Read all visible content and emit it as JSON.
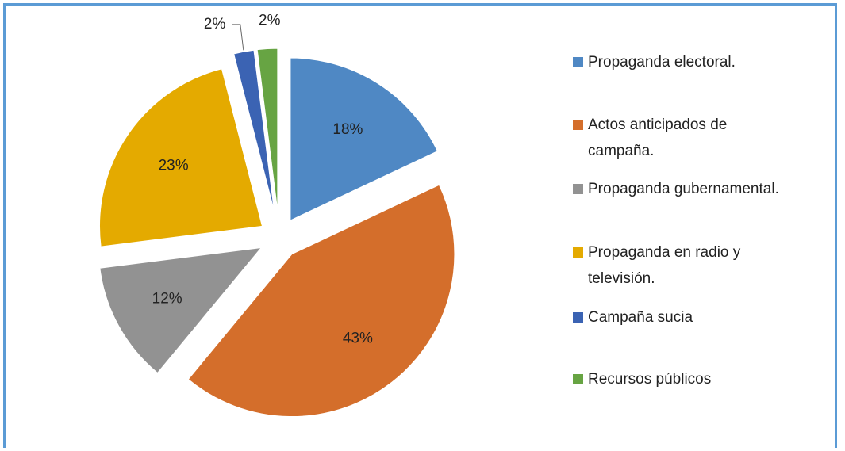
{
  "chart_data": {
    "type": "pie",
    "categories": [
      "Propaganda electoral.",
      "Actos anticipados de campaña.",
      "Propaganda gubernamental.",
      "Propaganda en radio y televisión.",
      "Campaña sucia",
      "Recursos públicos"
    ],
    "values": [
      18,
      43,
      12,
      23,
      2,
      2
    ],
    "value_labels": [
      "18%",
      "43%",
      "12%",
      "23%",
      "2%",
      "2%"
    ],
    "colors": [
      "#4f88c4",
      "#d46e2b",
      "#929292",
      "#e4aa00",
      "#3b63b3",
      "#67a443"
    ],
    "legend": "right"
  }
}
